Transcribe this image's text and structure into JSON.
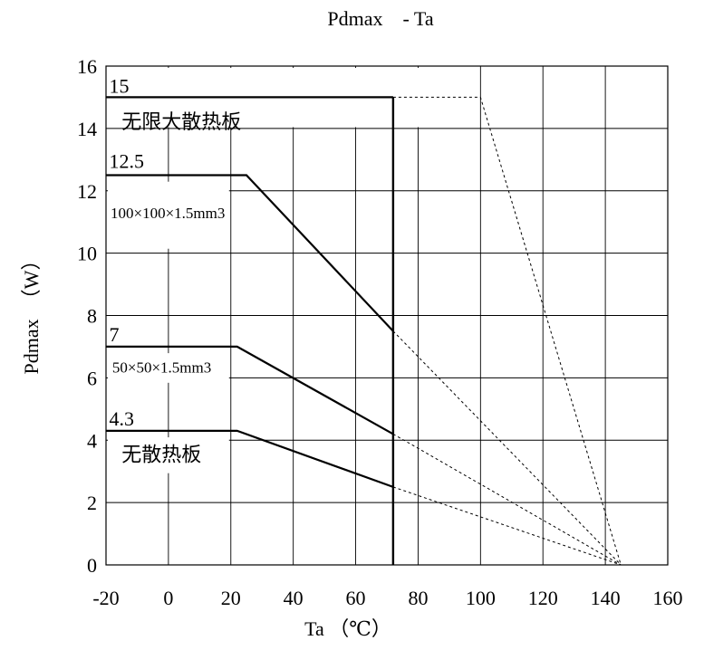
{
  "chart_data": {
    "type": "line",
    "title": "Pdmax　- Ta",
    "xlabel": "Ta （℃）",
    "ylabel": "Pdmax　（W）",
    "xlim": [
      -20,
      160
    ],
    "ylim": [
      0,
      16
    ],
    "xticks": [
      -20,
      0,
      20,
      40,
      60,
      80,
      100,
      120,
      140,
      160
    ],
    "yticks": [
      0,
      2,
      4,
      6,
      8,
      10,
      12,
      14,
      16
    ],
    "grid": true,
    "cutoff_x": 72,
    "series": [
      {
        "name": "无限大散热板",
        "value_label": "15",
        "points": [
          [
            -20,
            15
          ],
          [
            72,
            15
          ]
        ],
        "dashed": [
          [
            72,
            15
          ],
          [
            100,
            15
          ],
          [
            145,
            0
          ]
        ]
      },
      {
        "name": "100×100×1.5mm3",
        "value_label": "12.5",
        "points": [
          [
            -20,
            12.5
          ],
          [
            25,
            12.5
          ],
          [
            72,
            7.5
          ]
        ],
        "dashed": [
          [
            72,
            7.5
          ],
          [
            145,
            0
          ]
        ]
      },
      {
        "name": "50×50×1.5mm3",
        "value_label": "7",
        "points": [
          [
            -20,
            7
          ],
          [
            22,
            7
          ],
          [
            72,
            4.2
          ]
        ],
        "dashed": [
          [
            72,
            4.2
          ],
          [
            145,
            0
          ]
        ]
      },
      {
        "name": "无散热板",
        "value_label": "4.3",
        "points": [
          [
            -20,
            4.3
          ],
          [
            22,
            4.3
          ],
          [
            72,
            2.5
          ]
        ],
        "dashed": [
          [
            72,
            2.5
          ],
          [
            145,
            0
          ]
        ]
      }
    ]
  }
}
